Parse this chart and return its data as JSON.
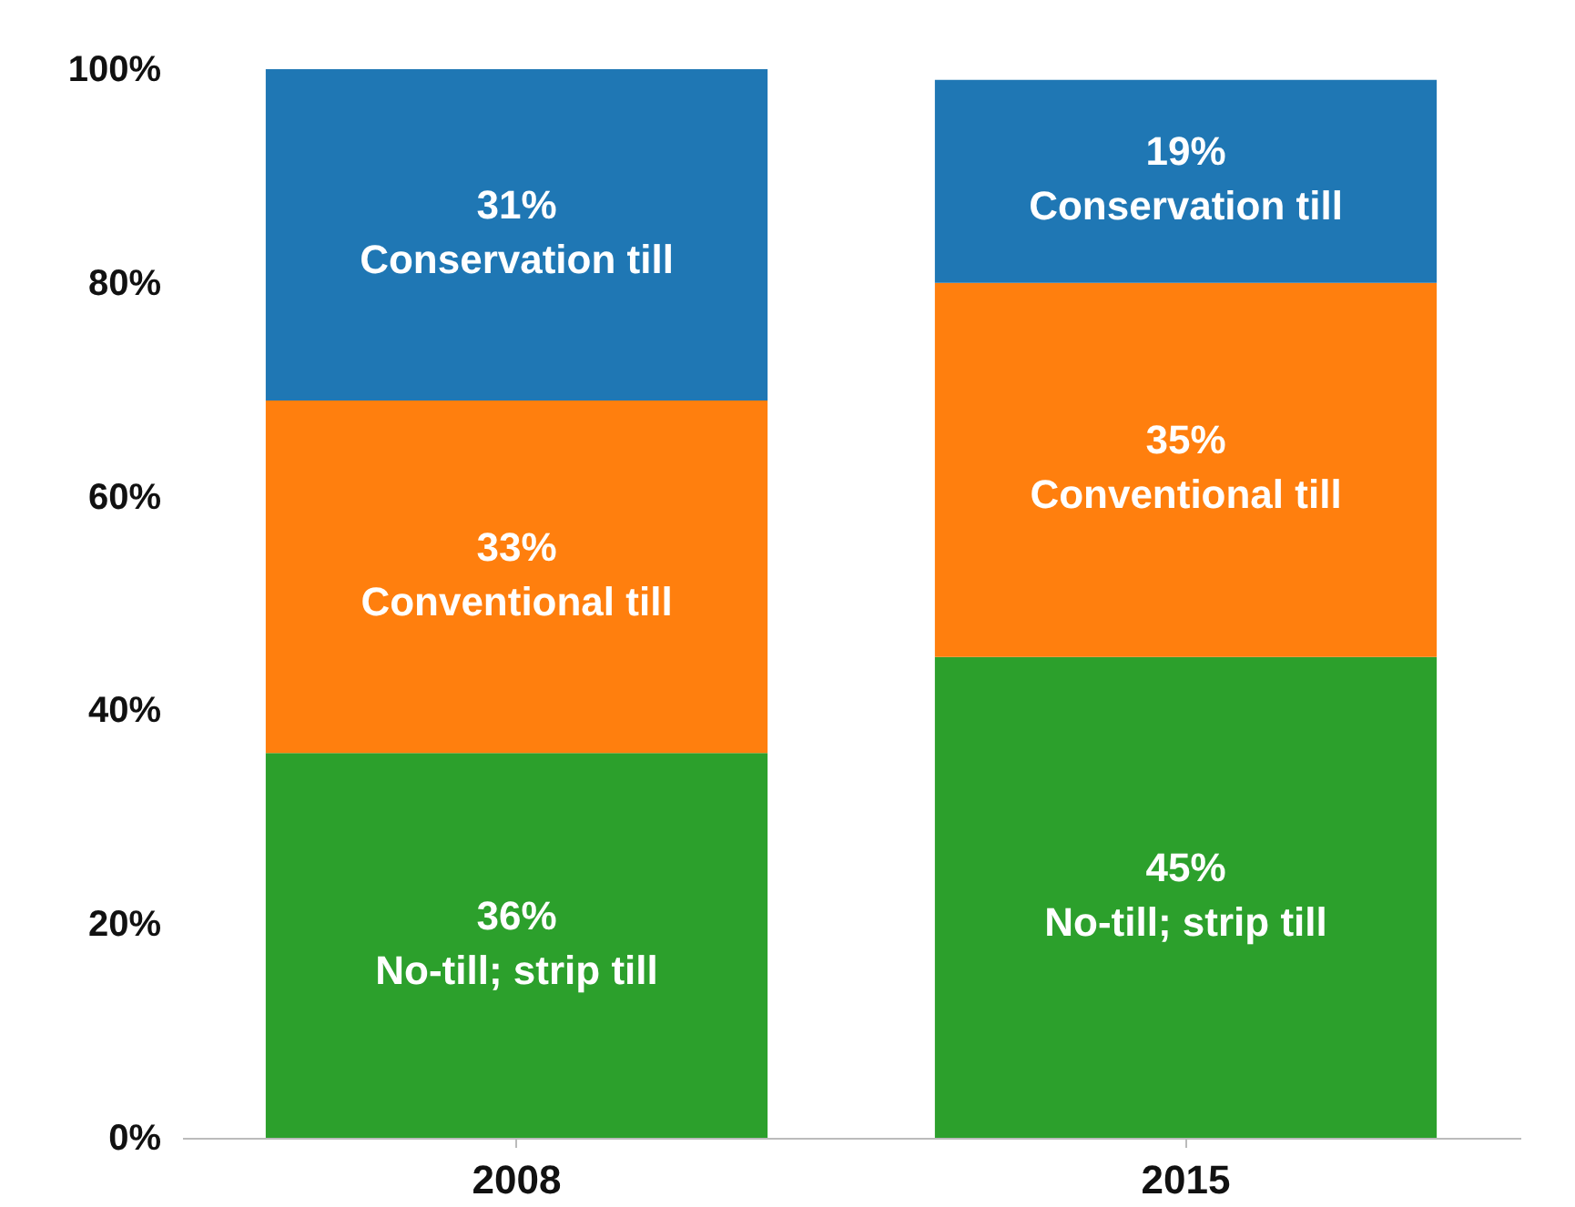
{
  "chart_data": {
    "type": "bar",
    "stacked": true,
    "categories": [
      "2008",
      "2015"
    ],
    "series": [
      {
        "name": "No-till; strip till",
        "color": "#2ca02c",
        "values": [
          36,
          45
        ],
        "value_labels": [
          "36%",
          "45%"
        ]
      },
      {
        "name": "Conventional till",
        "color": "#ff7f0e",
        "values": [
          33,
          35
        ],
        "value_labels": [
          "33%",
          "35%"
        ]
      },
      {
        "name": "Conservation till",
        "color": "#1f77b4",
        "values": [
          31,
          19
        ],
        "value_labels": [
          "31%",
          "19%"
        ]
      }
    ],
    "ylim": [
      0,
      100
    ],
    "yticks": [
      {
        "value": 0,
        "label": "0%"
      },
      {
        "value": 20,
        "label": "20%"
      },
      {
        "value": 40,
        "label": "40%"
      },
      {
        "value": 60,
        "label": "60%"
      },
      {
        "value": 80,
        "label": "80%"
      },
      {
        "value": 100,
        "label": "100%"
      }
    ],
    "grid": false,
    "legend": false
  }
}
